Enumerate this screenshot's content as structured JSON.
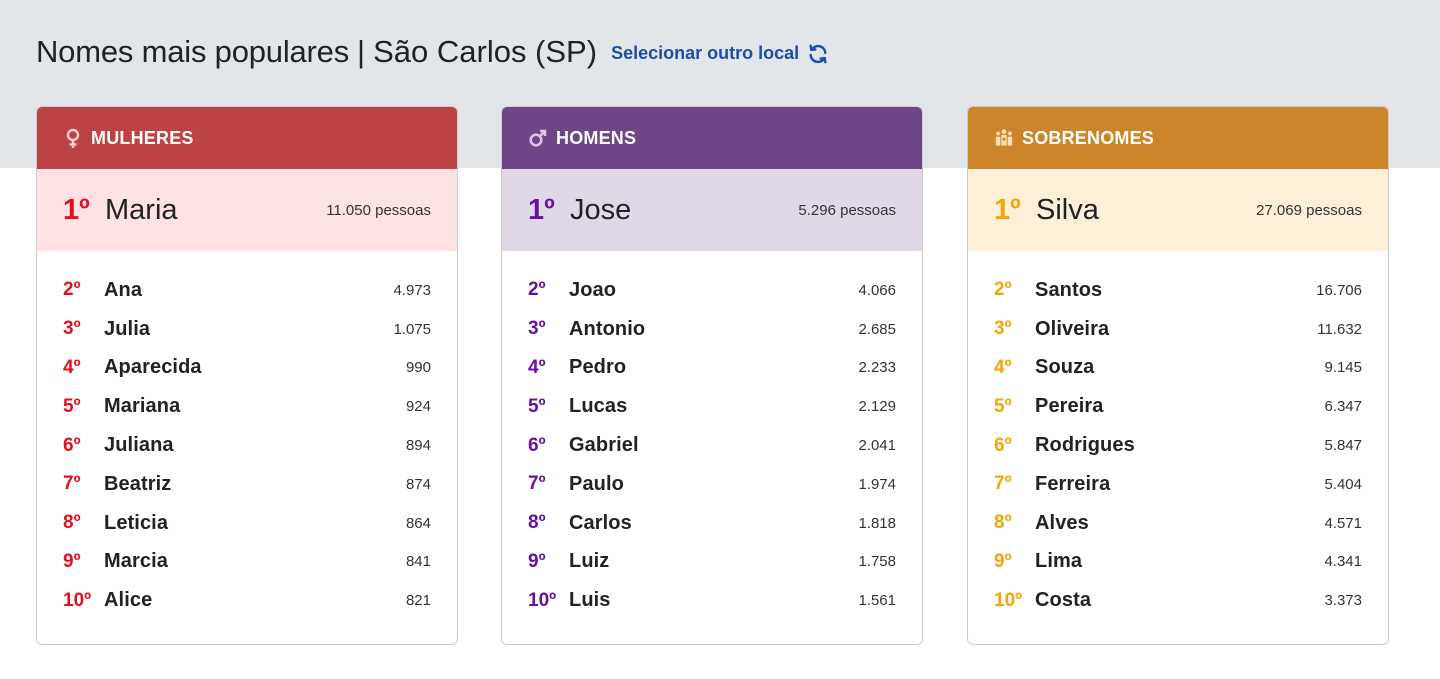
{
  "header": {
    "title": "Nomes mais populares",
    "separator": "|",
    "location": "São Carlos (SP)",
    "change_location_label": "Selecionar outro local",
    "change_location_icon": "refresh-icon"
  },
  "colors": {
    "female_header": "#bd4242",
    "female_accent": "#e30f1f",
    "male_header": "#6e4586",
    "male_accent": "#6a109e",
    "surname_header": "#cc8528",
    "surname_accent": "#f2a608"
  },
  "cards": [
    {
      "title": "MULHERES",
      "icon": "female-icon",
      "first": {
        "rank": "1º",
        "name": "Maria",
        "count": "11.050 pessoas"
      },
      "items": [
        {
          "rank": "2º",
          "name": "Ana",
          "count": "4.973"
        },
        {
          "rank": "3º",
          "name": "Julia",
          "count": "1.075"
        },
        {
          "rank": "4º",
          "name": "Aparecida",
          "count": "990"
        },
        {
          "rank": "5º",
          "name": "Mariana",
          "count": "924"
        },
        {
          "rank": "6º",
          "name": "Juliana",
          "count": "894"
        },
        {
          "rank": "7º",
          "name": "Beatriz",
          "count": "874"
        },
        {
          "rank": "8º",
          "name": "Leticia",
          "count": "864"
        },
        {
          "rank": "9º",
          "name": "Marcia",
          "count": "841"
        },
        {
          "rank": "10º",
          "name": "Alice",
          "count": "821"
        }
      ]
    },
    {
      "title": "HOMENS",
      "icon": "male-icon",
      "first": {
        "rank": "1º",
        "name": "Jose",
        "count": "5.296 pessoas"
      },
      "items": [
        {
          "rank": "2º",
          "name": "Joao",
          "count": "4.066"
        },
        {
          "rank": "3º",
          "name": "Antonio",
          "count": "2.685"
        },
        {
          "rank": "4º",
          "name": "Pedro",
          "count": "2.233"
        },
        {
          "rank": "5º",
          "name": "Lucas",
          "count": "2.129"
        },
        {
          "rank": "6º",
          "name": "Gabriel",
          "count": "2.041"
        },
        {
          "rank": "7º",
          "name": "Paulo",
          "count": "1.974"
        },
        {
          "rank": "8º",
          "name": "Carlos",
          "count": "1.818"
        },
        {
          "rank": "9º",
          "name": "Luiz",
          "count": "1.758"
        },
        {
          "rank": "10º",
          "name": "Luis",
          "count": "1.561"
        }
      ]
    },
    {
      "title": "SOBRENOMES",
      "icon": "family-icon",
      "first": {
        "rank": "1º",
        "name": "Silva",
        "count": "27.069 pessoas"
      },
      "items": [
        {
          "rank": "2º",
          "name": "Santos",
          "count": "16.706"
        },
        {
          "rank": "3º",
          "name": "Oliveira",
          "count": "11.632"
        },
        {
          "rank": "4º",
          "name": "Souza",
          "count": "9.145"
        },
        {
          "rank": "5º",
          "name": "Pereira",
          "count": "6.347"
        },
        {
          "rank": "6º",
          "name": "Rodrigues",
          "count": "5.847"
        },
        {
          "rank": "7º",
          "name": "Ferreira",
          "count": "5.404"
        },
        {
          "rank": "8º",
          "name": "Alves",
          "count": "4.571"
        },
        {
          "rank": "9º",
          "name": "Lima",
          "count": "4.341"
        },
        {
          "rank": "10º",
          "name": "Costa",
          "count": "3.373"
        }
      ]
    }
  ]
}
